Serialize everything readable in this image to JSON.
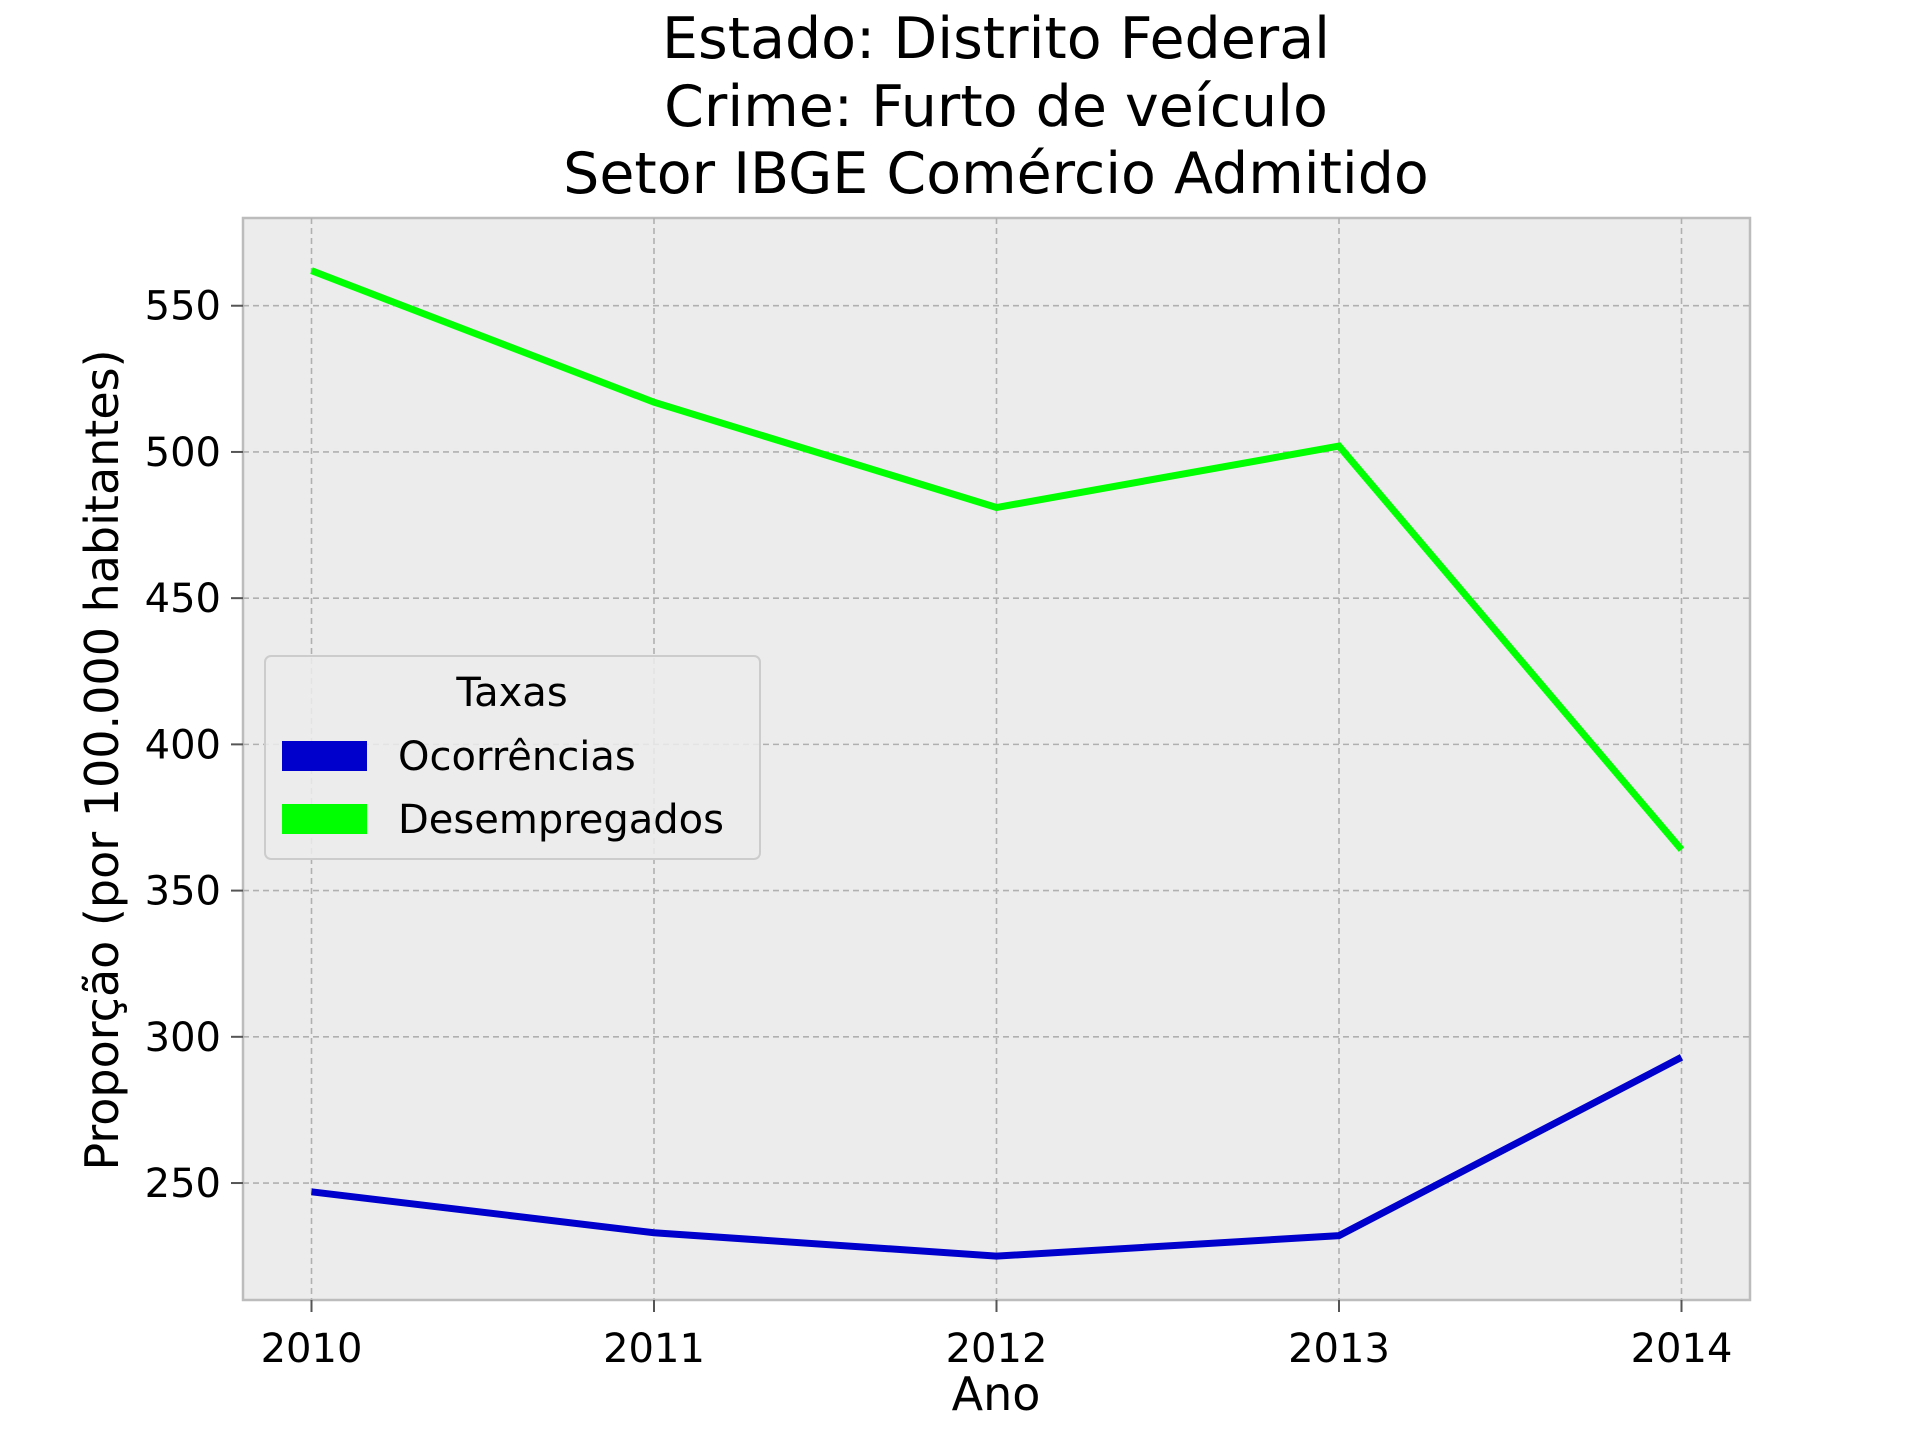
{
  "chart_data": {
    "type": "line",
    "title_lines": [
      "Estado: Distrito Federal",
      "Crime: Furto de veículo",
      "Setor IBGE  Comércio   Admitido"
    ],
    "xlabel": "Ano",
    "ylabel": "Proporção (por 100.000 habitantes)",
    "x": [
      2010,
      2011,
      2012,
      2013,
      2014
    ],
    "x_tick_labels": [
      "2010",
      "2011",
      "2012",
      "2013",
      "2014"
    ],
    "y_ticks": [
      250,
      300,
      350,
      400,
      450,
      500,
      550
    ],
    "y_tick_labels": [
      "250",
      "300",
      "350",
      "400",
      "450",
      "500",
      "550"
    ],
    "xlim": [
      2009.8,
      2014.2
    ],
    "ylim": [
      210,
      580
    ],
    "grid": true,
    "legend": {
      "title": "Taxas",
      "placement": "center-left"
    },
    "series": [
      {
        "name": "Ocorrências",
        "color": "#0000cc",
        "values": [
          247,
          233,
          225,
          232,
          293
        ]
      },
      {
        "name": "Desempregados",
        "color": "#00ff00",
        "values": [
          562,
          517,
          481,
          502,
          364
        ]
      }
    ],
    "colors": {
      "plot_background": "#ececec",
      "grid": "#b0b0b0",
      "spine": "#bcbcbc"
    }
  }
}
